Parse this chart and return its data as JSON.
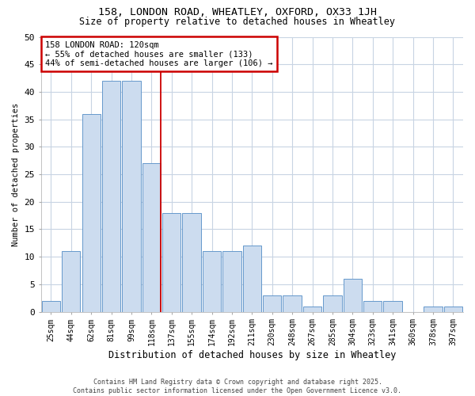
{
  "title1": "158, LONDON ROAD, WHEATLEY, OXFORD, OX33 1JH",
  "title2": "Size of property relative to detached houses in Wheatley",
  "xlabel": "Distribution of detached houses by size in Wheatley",
  "ylabel": "Number of detached properties",
  "categories": [
    "25sqm",
    "44sqm",
    "62sqm",
    "81sqm",
    "99sqm",
    "118sqm",
    "137sqm",
    "155sqm",
    "174sqm",
    "192sqm",
    "211sqm",
    "230sqm",
    "248sqm",
    "267sqm",
    "285sqm",
    "304sqm",
    "323sqm",
    "341sqm",
    "360sqm",
    "378sqm",
    "397sqm"
  ],
  "values": [
    2,
    11,
    36,
    42,
    42,
    27,
    18,
    18,
    11,
    11,
    12,
    3,
    3,
    1,
    3,
    6,
    2,
    2,
    0,
    1,
    1
  ],
  "bar_color": "#ccdcef",
  "bar_edge_color": "#6699cc",
  "highlight_index": 5,
  "highlight_line_color": "#cc0000",
  "ylim": [
    0,
    50
  ],
  "yticks": [
    0,
    5,
    10,
    15,
    20,
    25,
    30,
    35,
    40,
    45,
    50
  ],
  "annotation_title": "158 LONDON ROAD: 120sqm",
  "annotation_line1": "← 55% of detached houses are smaller (133)",
  "annotation_line2": "44% of semi-detached houses are larger (106) →",
  "annotation_box_color": "#ffffff",
  "annotation_box_edge": "#cc0000",
  "footer_line1": "Contains HM Land Registry data © Crown copyright and database right 2025.",
  "footer_line2": "Contains public sector information licensed under the Open Government Licence v3.0.",
  "fig_bg_color": "#ffffff",
  "plot_bg_color": "#ffffff",
  "grid_color": "#c8d4e3"
}
